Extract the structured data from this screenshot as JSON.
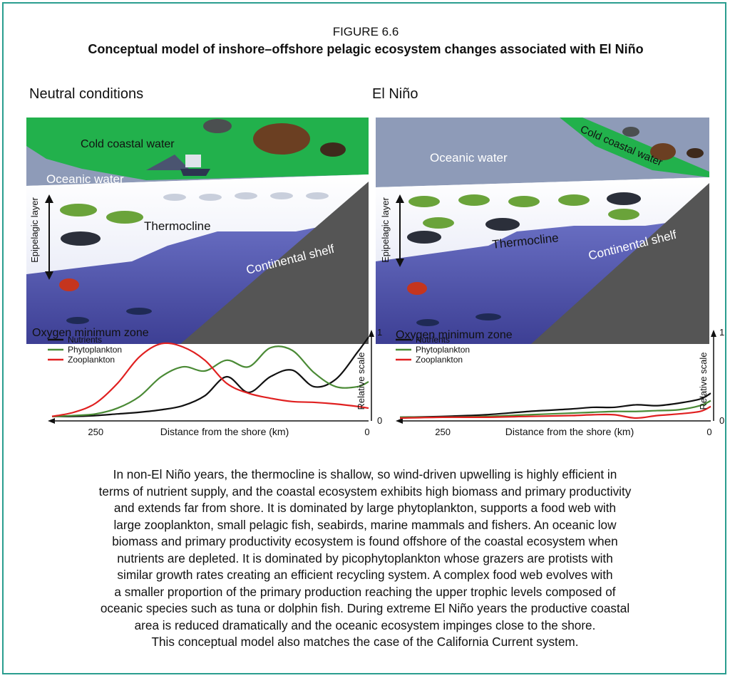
{
  "figure": {
    "label": "FIGURE 6.6",
    "title": "Conceptual model of inshore–offshore pelagic ecosystem changes associated with El Niño"
  },
  "panels": [
    {
      "title": "Neutral conditions",
      "labels": {
        "cold_water": "Cold coastal water",
        "oceanic_water": "Oceanic water",
        "epipelagic": "Epipelagic layer",
        "thermocline": "Thermocline",
        "shelf": "Continental shelf",
        "omz": "Oxygen minimum zone"
      }
    },
    {
      "title": "El Niño",
      "labels": {
        "cold_water": "Cold coastal water",
        "oceanic_water": "Oceanic water",
        "epipelagic": "Epipelagic layer",
        "thermocline": "Thermocline",
        "shelf": "Continental shelf",
        "omz": "Oxygen minimum zone"
      }
    }
  ],
  "chart_data": [
    {
      "type": "line",
      "panel": "Neutral conditions",
      "xlabel": "Distance from the shore (km)",
      "ylabel": "Relative scale",
      "xlim": [
        290,
        0
      ],
      "ylim": [
        0,
        1
      ],
      "x_ticks": [
        "250",
        "0"
      ],
      "y_ticks": [
        "0",
        "1"
      ],
      "x": [
        290,
        270,
        250,
        230,
        210,
        190,
        170,
        150,
        130,
        110,
        90,
        70,
        50,
        30,
        10,
        0
      ],
      "series": [
        {
          "name": "Nutrients",
          "color": "#111111",
          "values": [
            0.02,
            0.02,
            0.03,
            0.05,
            0.07,
            0.1,
            0.15,
            0.27,
            0.5,
            0.31,
            0.5,
            0.58,
            0.38,
            0.47,
            0.8,
            0.98
          ]
        },
        {
          "name": "Phytoplankton",
          "color": "#4a8a35",
          "values": [
            0.02,
            0.03,
            0.05,
            0.12,
            0.26,
            0.5,
            0.62,
            0.57,
            0.7,
            0.62,
            0.85,
            0.82,
            0.55,
            0.38,
            0.38,
            0.44
          ]
        },
        {
          "name": "Zooplankton",
          "color": "#e02020",
          "values": [
            0.02,
            0.07,
            0.18,
            0.42,
            0.74,
            0.9,
            0.86,
            0.7,
            0.42,
            0.3,
            0.24,
            0.2,
            0.19,
            0.17,
            0.14,
            0.12
          ]
        }
      ]
    },
    {
      "type": "line",
      "panel": "El Niño",
      "xlabel": "Distance from the shore (km)",
      "ylabel": "Relative scale",
      "xlim": [
        290,
        0
      ],
      "ylim": [
        0,
        1
      ],
      "x_ticks": [
        "250",
        "0"
      ],
      "y_ticks": [
        "0",
        "1"
      ],
      "x": [
        290,
        250,
        210,
        170,
        130,
        110,
        90,
        70,
        50,
        30,
        10,
        0
      ],
      "series": [
        {
          "name": "Nutrients",
          "color": "#111111",
          "values": [
            0.01,
            0.02,
            0.04,
            0.08,
            0.11,
            0.13,
            0.13,
            0.16,
            0.15,
            0.18,
            0.23,
            0.3
          ]
        },
        {
          "name": "Phytoplankton",
          "color": "#4a8a35",
          "values": [
            0.01,
            0.01,
            0.02,
            0.04,
            0.06,
            0.07,
            0.08,
            0.08,
            0.09,
            0.1,
            0.15,
            0.21
          ]
        },
        {
          "name": "Zooplankton",
          "color": "#e02020",
          "values": [
            0.0,
            0.01,
            0.01,
            0.02,
            0.03,
            0.04,
            0.04,
            0.0,
            0.03,
            0.05,
            0.08,
            0.14
          ]
        }
      ]
    }
  ],
  "caption": [
    "In non-El Niño years, the thermocline is shallow, so wind-driven upwelling is highly efficient in",
    "terms of nutrient supply, and the coastal ecosystem exhibits high biomass and primary productivity",
    "and extends far from shore. It is dominated by large phytoplankton, supports a food web with",
    "large zooplankton, small pelagic fish, seabirds, marine mammals and fishers. An oceanic low",
    "biomass and primary productivity ecosystem is found offshore of the coastal ecosystem when",
    "nutrients are depleted. It is dominated by picophytoplankton whose grazers are protists with",
    "similar growth rates creating an efficient recycling system. A complex food web evolves with",
    "a smaller proportion of the primary production reaching the upper trophic levels composed of",
    "oceanic species such as tuna or dolphin fish. During extreme El Niño years the productive coastal",
    "area is reduced dramatically and the oceanic ecosystem impinges close to the shore.",
    "This conceptual model also matches the case of the California Current system."
  ],
  "colors": {
    "border": "#2a9d8f",
    "cold_water": "#22b14c",
    "oceanic_surface": "#8e9bb8",
    "deep_water": "#5a5fb8",
    "shelf": "#555555",
    "nutrients": "#111111",
    "phytoplankton": "#4a8a35",
    "zooplankton": "#e02020"
  }
}
